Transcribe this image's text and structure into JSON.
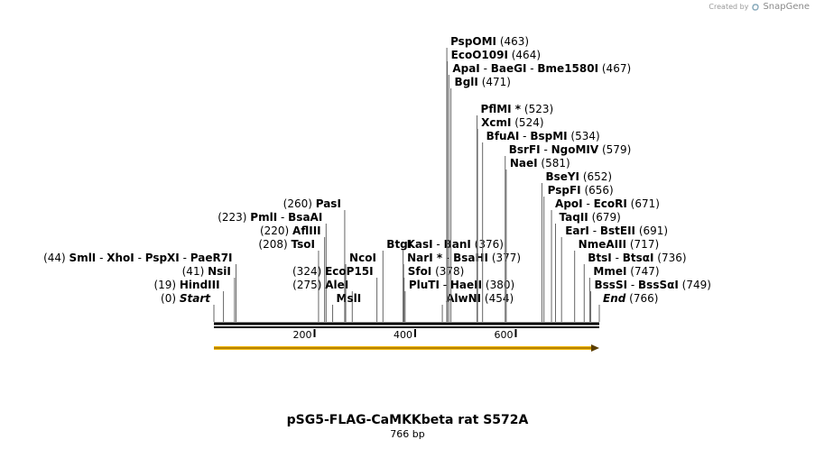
{
  "credit": {
    "prefix": "Created by",
    "brand": "SnapGene"
  },
  "title": "pSG5-FLAG-CaMKKbeta rat S572A",
  "length_label": "766 bp",
  "sequence_length": 766,
  "axis_ticks": [
    "200",
    "400",
    "600"
  ],
  "sites": [
    {
      "names": [
        "Start"
      ],
      "pos": "(0)",
      "bp": 0,
      "row": 1,
      "side": "left",
      "italic": true
    },
    {
      "names": [
        "HindIII"
      ],
      "pos": "(19)",
      "bp": 19,
      "row": 2,
      "side": "left"
    },
    {
      "names": [
        "NsiI"
      ],
      "pos": "(41)",
      "bp": 41,
      "row": 3,
      "side": "left"
    },
    {
      "names": [
        "SmlI",
        "XhoI",
        "PspXI",
        "PaeR7I"
      ],
      "pos": "(44)",
      "bp": 44,
      "row": 4,
      "side": "left"
    },
    {
      "names": [
        "TsoI"
      ],
      "pos": "(208)",
      "bp": 208,
      "row": 5,
      "side": "left"
    },
    {
      "names": [
        "AflIII"
      ],
      "pos": "(220)",
      "bp": 220,
      "row": 6,
      "side": "left"
    },
    {
      "names": [
        "PmlI",
        "BsaAI"
      ],
      "pos": "(223)",
      "bp": 223,
      "row": 7,
      "side": "left"
    },
    {
      "names": [
        "PasI"
      ],
      "pos": "(260)",
      "bp": 260,
      "row": 8,
      "side": "left"
    },
    {
      "names": [
        "AleI"
      ],
      "pos": "(275)",
      "bp": 275,
      "row": 2,
      "side": "left"
    },
    {
      "names": [
        "EcoP15I"
      ],
      "pos": "(324)",
      "bp": 324,
      "row": 3,
      "side": "left"
    },
    {
      "names": [
        "MslI"
      ],
      "pos": "",
      "bp": 236,
      "row": 1,
      "side": "right"
    },
    {
      "names": [
        "NcoI"
      ],
      "pos": "",
      "bp": 262,
      "row": 4,
      "side": "right"
    },
    {
      "names": [
        "BtgI"
      ],
      "pos": "",
      "bp": 336,
      "row": 5,
      "side": "right"
    },
    {
      "names": [
        "KasI",
        "BanI"
      ],
      "pos": "(376)",
      "bp": 376,
      "row": 5,
      "side": "right"
    },
    {
      "names": [
        "NarI *",
        "BsaHI"
      ],
      "pos": "(377)",
      "bp": 377,
      "row": 4,
      "side": "right"
    },
    {
      "names": [
        "SfoI"
      ],
      "pos": "(378)",
      "bp": 378,
      "row": 3,
      "side": "right"
    },
    {
      "names": [
        "PluTI",
        "HaeII"
      ],
      "pos": "(380)",
      "bp": 380,
      "row": 2,
      "side": "right"
    },
    {
      "names": [
        "AlwNI"
      ],
      "pos": "(454)",
      "bp": 454,
      "row": 1,
      "side": "right"
    },
    {
      "names": [
        "PspOMI"
      ],
      "pos": "(463)",
      "bp": 463,
      "row": 20,
      "side": "right"
    },
    {
      "names": [
        "EcoO109I"
      ],
      "pos": "(464)",
      "bp": 464,
      "row": 19,
      "side": "right"
    },
    {
      "names": [
        "ApaI",
        "BaeGI",
        "Bme1580I"
      ],
      "pos": "(467)",
      "bp": 467,
      "row": 18,
      "side": "right"
    },
    {
      "names": [
        "BglI"
      ],
      "pos": "(471)",
      "bp": 471,
      "row": 17,
      "side": "right"
    },
    {
      "names": [
        "PflMI *"
      ],
      "pos": "(523)",
      "bp": 523,
      "row": 15,
      "side": "right"
    },
    {
      "names": [
        "XcmI"
      ],
      "pos": "(524)",
      "bp": 524,
      "row": 14,
      "side": "right"
    },
    {
      "names": [
        "BfuAI",
        "BspMI"
      ],
      "pos": "(534)",
      "bp": 534,
      "row": 13,
      "side": "right"
    },
    {
      "names": [
        "BsrFI",
        "NgoMIV"
      ],
      "pos": "(579)",
      "bp": 579,
      "row": 12,
      "side": "right"
    },
    {
      "names": [
        "NaeI"
      ],
      "pos": "(581)",
      "bp": 581,
      "row": 11,
      "side": "right"
    },
    {
      "names": [
        "BseYI"
      ],
      "pos": "(652)",
      "bp": 652,
      "row": 10,
      "side": "right"
    },
    {
      "names": [
        "PspFI"
      ],
      "pos": "(656)",
      "bp": 656,
      "row": 9,
      "side": "right"
    },
    {
      "names": [
        "ApoI",
        "EcoRI"
      ],
      "pos": "(671)",
      "bp": 671,
      "row": 8,
      "side": "right"
    },
    {
      "names": [
        "TaqII"
      ],
      "pos": "(679)",
      "bp": 679,
      "row": 7,
      "side": "right"
    },
    {
      "names": [
        "EarI",
        "BstEII"
      ],
      "pos": "(691)",
      "bp": 691,
      "row": 6,
      "side": "right"
    },
    {
      "names": [
        "NmeAIII"
      ],
      "pos": "(717)",
      "bp": 717,
      "row": 5,
      "side": "right"
    },
    {
      "names": [
        "BtsI",
        "BtsαI"
      ],
      "pos": "(736)",
      "bp": 736,
      "row": 4,
      "side": "right"
    },
    {
      "names": [
        "MmeI"
      ],
      "pos": "(747)",
      "bp": 747,
      "row": 3,
      "side": "right"
    },
    {
      "names": [
        "BssSI",
        "BssSαI"
      ],
      "pos": "(749)",
      "bp": 749,
      "row": 2,
      "side": "right"
    },
    {
      "names": [
        "End"
      ],
      "pos": "(766)",
      "bp": 766,
      "row": 1,
      "side": "right",
      "italic": true
    }
  ]
}
